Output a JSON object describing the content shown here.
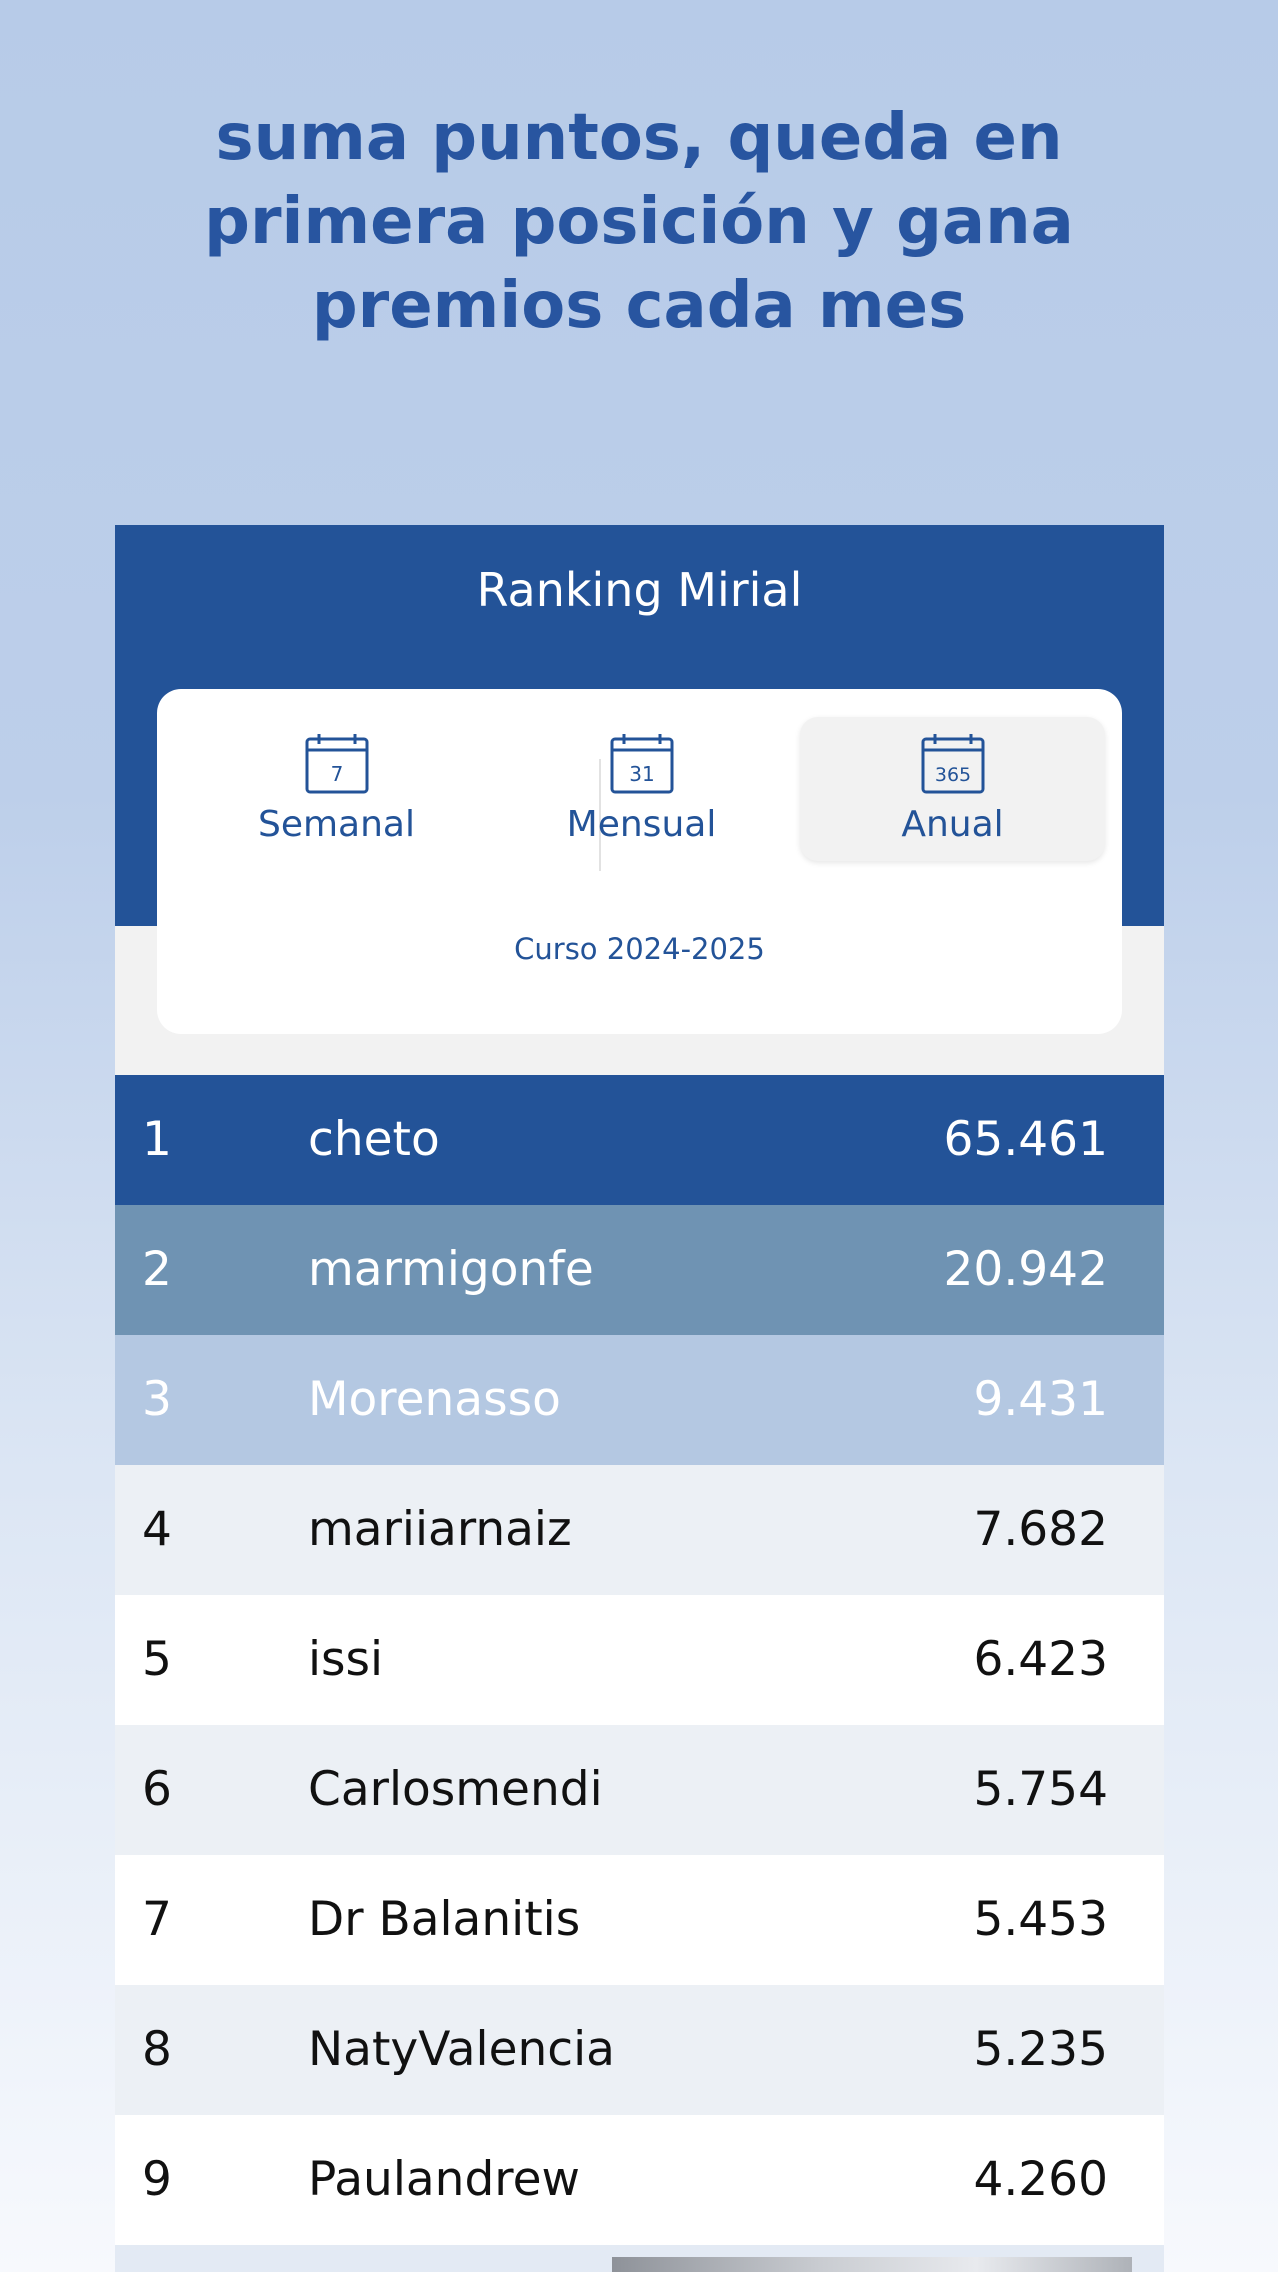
{
  "headline": "suma puntos, queda en primera posición y gana premios cada mes",
  "ranking": {
    "title": "Ranking Mirial",
    "tabs": [
      {
        "label": "Semanal",
        "icon": "calendar-icon",
        "icon_number": "7",
        "active": false
      },
      {
        "label": "Mensual",
        "icon": "calendar-icon",
        "icon_number": "31",
        "active": false
      },
      {
        "label": "Anual",
        "icon": "calendar-icon",
        "icon_number": "365",
        "active": true
      }
    ],
    "course": "Curso 2024-2025",
    "rows": [
      {
        "position": "1",
        "name": "cheto",
        "points": "65.461"
      },
      {
        "position": "2",
        "name": "marmigonfe",
        "points": "20.942"
      },
      {
        "position": "3",
        "name": "Morenasso",
        "points": "9.431"
      },
      {
        "position": "4",
        "name": "mariiarnaiz",
        "points": "7.682"
      },
      {
        "position": "5",
        "name": "issi",
        "points": "6.423"
      },
      {
        "position": "6",
        "name": "Carlosmendi",
        "points": "5.754"
      },
      {
        "position": "7",
        "name": "Dr Balanitis",
        "points": "5.453"
      },
      {
        "position": "8",
        "name": "NatyValencia",
        "points": "5.235"
      },
      {
        "position": "9",
        "name": "Paulandrew",
        "points": "4.260"
      }
    ]
  },
  "colors": {
    "brand_blue": "#235398",
    "headline_blue": "#2855a0",
    "second_place": "#6f93b3",
    "third_place": "#b4c8e2"
  }
}
